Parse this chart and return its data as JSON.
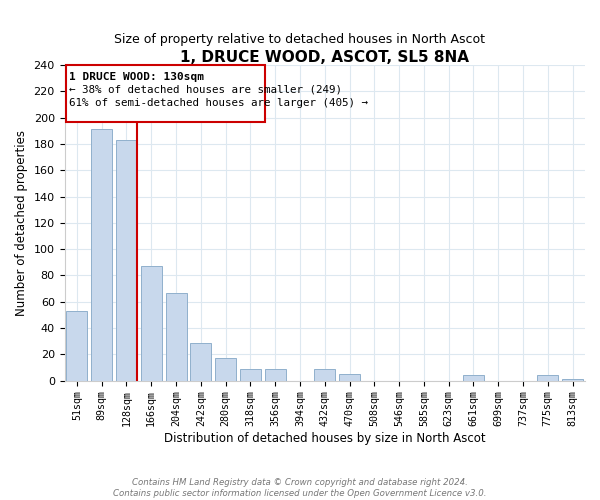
{
  "title": "1, DRUCE WOOD, ASCOT, SL5 8NA",
  "subtitle": "Size of property relative to detached houses in North Ascot",
  "xlabel": "Distribution of detached houses by size in North Ascot",
  "ylabel": "Number of detached properties",
  "bar_labels": [
    "51sqm",
    "89sqm",
    "128sqm",
    "166sqm",
    "204sqm",
    "242sqm",
    "280sqm",
    "318sqm",
    "356sqm",
    "394sqm",
    "432sqm",
    "470sqm",
    "508sqm",
    "546sqm",
    "585sqm",
    "623sqm",
    "661sqm",
    "699sqm",
    "737sqm",
    "775sqm",
    "813sqm"
  ],
  "bar_values": [
    53,
    191,
    183,
    87,
    67,
    29,
    17,
    9,
    9,
    0,
    9,
    5,
    0,
    0,
    0,
    0,
    4,
    0,
    0,
    4,
    1
  ],
  "bar_color": "#c8d8ec",
  "bar_edge_color": "#90b0cc",
  "highlight_label": "1 DRUCE WOOD: 130sqm",
  "annotation_line1": "← 38% of detached houses are smaller (249)",
  "annotation_line2": "61% of semi-detached houses are larger (405) →",
  "box_color": "#ffffff",
  "box_edge_color": "#cc0000",
  "line_color": "#cc0000",
  "ylim": [
    0,
    240
  ],
  "yticks": [
    0,
    20,
    40,
    60,
    80,
    100,
    120,
    140,
    160,
    180,
    200,
    220,
    240
  ],
  "footer1": "Contains HM Land Registry data © Crown copyright and database right 2024.",
  "footer2": "Contains public sector information licensed under the Open Government Licence v3.0.",
  "bg_color": "#ffffff",
  "grid_color": "#dde8f0"
}
